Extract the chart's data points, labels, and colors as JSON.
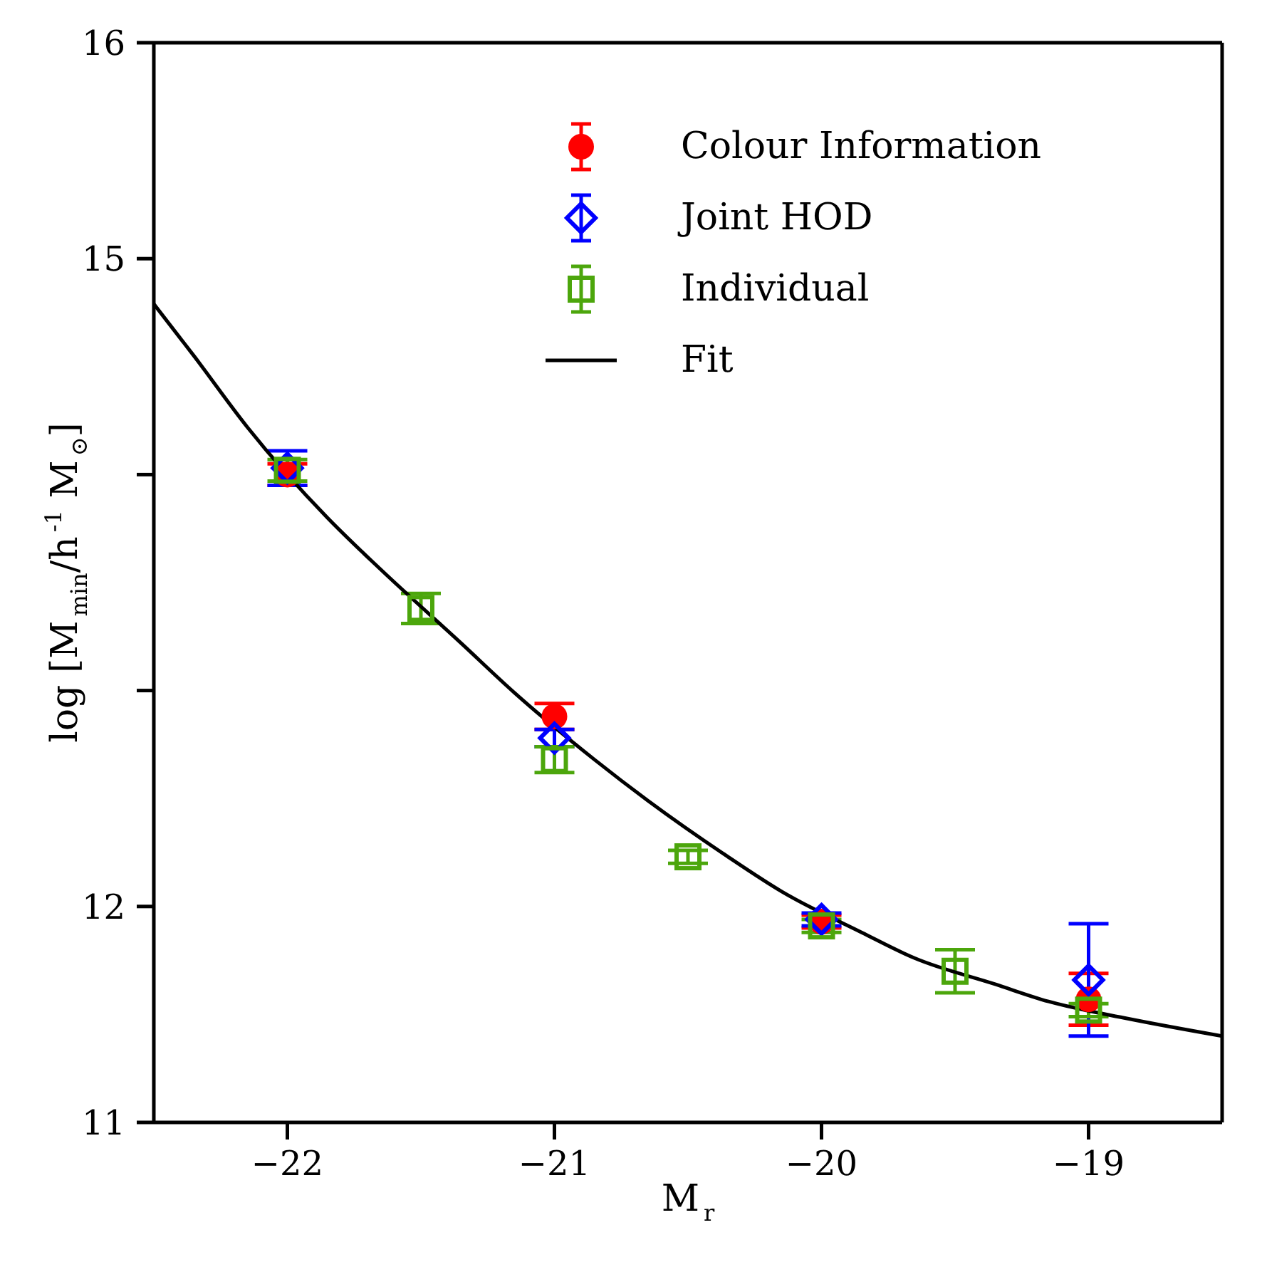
{
  "chart_data": {
    "type": "scatter",
    "xlabel": "M$_{r}$",
    "ylabel": "log [M$_{min}$/h$^{-1}$ M$_{⊙}$]",
    "xlim": [
      -22.5,
      -18.5
    ],
    "xticks": [
      -22,
      -21,
      -20,
      -19
    ],
    "ylim": [
      11,
      16
    ],
    "yticks": [
      11,
      {
        "value": 12,
        "label": "12"
      },
      {
        "value": 13,
        "label": null
      },
      {
        "value": 14,
        "label": null
      },
      15,
      16
    ],
    "legend": "top right",
    "grid": false,
    "series": [
      {
        "name": "Colour Information",
        "color": "#ff0000",
        "marker": "circle",
        "x": [
          -22,
          -21,
          -20,
          -19
        ],
        "values": [
          14.0,
          12.88,
          11.93,
          11.57
        ],
        "errors": [
          0.05,
          0.06,
          0.03,
          0.12
        ]
      },
      {
        "name": "Joint HOD",
        "color": "#0000ff",
        "marker": "diamond",
        "x": [
          -22,
          -21,
          -20,
          -19
        ],
        "values": [
          14.03,
          12.78,
          11.94,
          11.66
        ],
        "errors": [
          0.08,
          0.04,
          0.03,
          0.26
        ]
      },
      {
        "name": "Individual",
        "color": "#4ca60c",
        "marker": "square",
        "x": [
          -22,
          -21.5,
          -21,
          -20.5,
          -20,
          -19.5,
          -19
        ],
        "values": [
          14.02,
          13.38,
          12.68,
          12.23,
          11.91,
          11.7,
          11.52
        ],
        "errors": [
          0.05,
          0.07,
          0.06,
          0.03,
          0.03,
          0.1,
          0.03
        ]
      },
      {
        "name": "Fit",
        "type": "line",
        "color": "#000000",
        "marker": "none",
        "x": [
          -22.5,
          -22.35,
          -22.15,
          -21.85,
          -21.65,
          -21.35,
          -21.15,
          -20.85,
          -20.65,
          -20.35,
          -20.15,
          -19.85,
          -19.65,
          -19.35,
          -19.15,
          -18.85,
          -18.5
        ],
        "values": [
          14.79,
          14.55,
          14.22,
          13.8,
          13.56,
          13.22,
          12.99,
          12.68,
          12.49,
          12.23,
          12.07,
          11.88,
          11.76,
          11.64,
          11.56,
          11.48,
          11.4
        ]
      }
    ]
  }
}
